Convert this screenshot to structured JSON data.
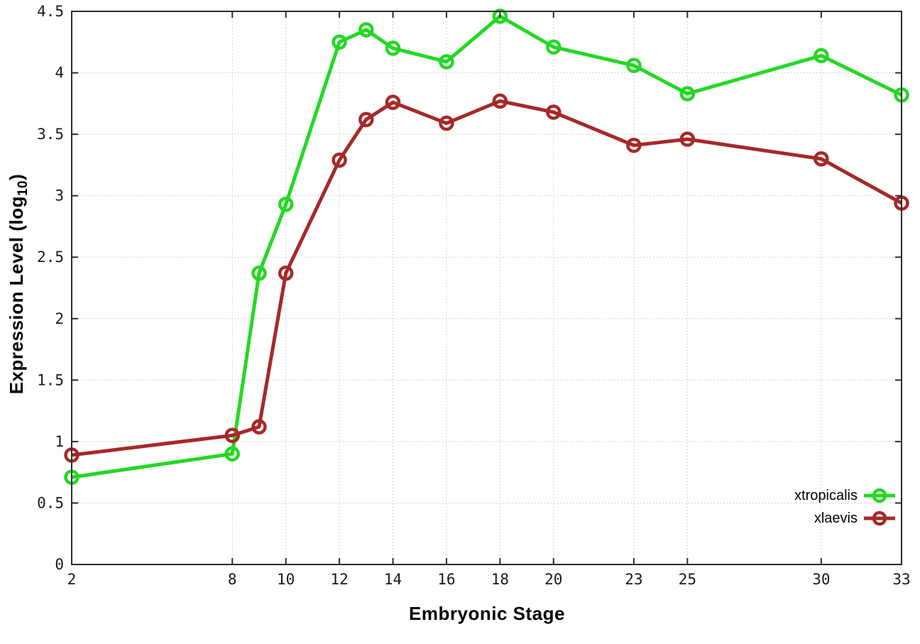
{
  "chart_data": {
    "type": "line",
    "title": "",
    "xlabel": "Embryonic Stage",
    "ylabel": "Expression Level (log10)",
    "ylabel_parts": {
      "main": "Expression Level (log",
      "sub": "10",
      "close": ")"
    },
    "x": [
      2,
      8,
      9,
      10,
      12,
      13,
      14,
      16,
      18,
      20,
      23,
      25,
      30,
      33
    ],
    "series": [
      {
        "name": "xtropicalis",
        "color": "#24d824",
        "values": [
          0.71,
          0.9,
          2.37,
          2.93,
          4.25,
          4.35,
          4.2,
          4.09,
          4.46,
          4.21,
          4.06,
          3.83,
          4.14,
          3.82
        ]
      },
      {
        "name": "xlaevis",
        "color": "#a62929",
        "values": [
          0.89,
          1.05,
          1.12,
          2.37,
          3.29,
          3.62,
          3.76,
          3.59,
          3.77,
          3.68,
          3.41,
          3.46,
          3.3,
          2.94
        ]
      }
    ],
    "x_ticks": [
      2,
      8,
      10,
      12,
      14,
      16,
      18,
      20,
      23,
      25,
      30,
      33
    ],
    "x_tick_labels": [
      "2",
      "8",
      "10",
      "12",
      "14",
      "16",
      "18",
      "20",
      "23",
      "25",
      "30",
      "33"
    ],
    "y_ticks": [
      0,
      0.5,
      1,
      1.5,
      2,
      2.5,
      3,
      3.5,
      4,
      4.5
    ],
    "y_tick_labels": [
      "0",
      "0.5",
      "1",
      "1.5",
      "2",
      "2.5",
      "3",
      "3.5",
      "4",
      "4.5"
    ],
    "xlim": [
      2,
      33
    ],
    "ylim": [
      0,
      4.5
    ],
    "grid": true,
    "legend_position": "bottom-right"
  },
  "colors": {
    "background": "#ffffff",
    "axis": "#2b2b2b",
    "grid": "#c4c4c4",
    "tick_text": "#1a1a1a",
    "title_text": "#000000",
    "series_green": "#24d824",
    "series_red": "#a62929"
  }
}
